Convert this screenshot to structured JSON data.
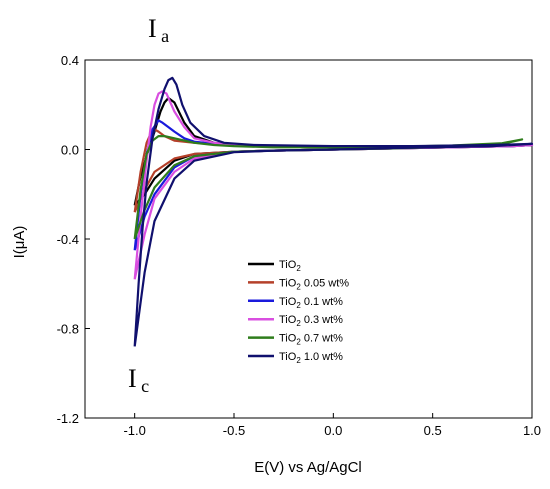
{
  "chart_data": {
    "type": "line",
    "xlabel": "E(V) vs Ag/AgCl",
    "ylabel": "I(μA)",
    "xlim": [
      -1.25,
      1.0
    ],
    "ylim": [
      -1.2,
      0.4
    ],
    "xticks": [
      -1.0,
      -0.5,
      0.0,
      0.5,
      1.0
    ],
    "xtick_labels": [
      "-1.0",
      "-0.5",
      "0.0",
      "0.5",
      "1.0"
    ],
    "yticks": [
      0.4,
      0.0,
      -0.4,
      -0.8,
      -1.2
    ],
    "ytick_labels": [
      "0.4",
      "0.0",
      "-0.4",
      "-0.8",
      "-1.2"
    ],
    "grid": false,
    "legend_position": "lower-center",
    "annotations": [
      {
        "main": "I",
        "sub": "a"
      },
      {
        "main": "I",
        "sub": "c"
      }
    ],
    "series": [
      {
        "name": "TiO2",
        "name_base": "TiO",
        "name_sub": "2",
        "name_suffix": "",
        "color": "#000000",
        "x": [
          -1.0,
          -0.97,
          -0.93,
          -0.9,
          -0.87,
          -0.85,
          -0.83,
          -0.8,
          -0.75,
          -0.7,
          -0.6,
          -0.5,
          -0.3,
          0.0,
          0.3,
          0.6,
          0.9,
          1.0,
          0.9,
          0.6,
          0.3,
          0.0,
          -0.3,
          -0.5,
          -0.7,
          -0.8,
          -0.9,
          -0.95,
          -1.0
        ],
        "y": [
          -0.25,
          -0.12,
          0.0,
          0.08,
          0.17,
          0.21,
          0.23,
          0.21,
          0.12,
          0.06,
          0.03,
          0.02,
          0.015,
          0.012,
          0.012,
          0.015,
          0.02,
          0.02,
          0.015,
          0.01,
          0.005,
          0.0,
          -0.005,
          -0.01,
          -0.02,
          -0.05,
          -0.13,
          -0.2,
          -0.25
        ]
      },
      {
        "name": "TiO2 0.05 wt%",
        "name_base": "TiO",
        "name_sub": "2",
        "name_suffix": " 0.05 wt%",
        "color": "#b5402a",
        "x": [
          -1.0,
          -0.97,
          -0.94,
          -0.92,
          -0.9,
          -0.88,
          -0.85,
          -0.8,
          -0.7,
          -0.6,
          -0.5,
          -0.3,
          0.0,
          0.3,
          0.6,
          0.9,
          1.0,
          0.9,
          0.6,
          0.3,
          0.0,
          -0.3,
          -0.5,
          -0.7,
          -0.8,
          -0.9,
          -0.95,
          -1.0
        ],
        "y": [
          -0.28,
          -0.1,
          0.03,
          0.07,
          0.09,
          0.08,
          0.06,
          0.04,
          0.03,
          0.025,
          0.02,
          0.015,
          0.012,
          0.012,
          0.015,
          0.02,
          0.02,
          0.015,
          0.01,
          0.005,
          0.0,
          -0.005,
          -0.01,
          -0.02,
          -0.04,
          -0.1,
          -0.18,
          -0.28
        ]
      },
      {
        "name": "TiO2 0.1 wt%",
        "name_base": "TiO",
        "name_sub": "2",
        "name_suffix": " 0.1 wt%",
        "color": "#1a1adc",
        "x": [
          -1.0,
          -0.97,
          -0.94,
          -0.91,
          -0.88,
          -0.86,
          -0.83,
          -0.8,
          -0.75,
          -0.7,
          -0.6,
          -0.5,
          -0.3,
          0.0,
          0.3,
          0.6,
          0.9,
          1.0,
          0.9,
          0.6,
          0.3,
          0.0,
          -0.3,
          -0.5,
          -0.7,
          -0.8,
          -0.9,
          -0.95,
          -1.0
        ],
        "y": [
          -0.45,
          -0.2,
          -0.02,
          0.09,
          0.13,
          0.12,
          0.1,
          0.08,
          0.05,
          0.035,
          0.025,
          0.02,
          0.015,
          0.012,
          0.012,
          0.015,
          0.02,
          0.02,
          0.015,
          0.01,
          0.005,
          0.0,
          -0.005,
          -0.01,
          -0.03,
          -0.08,
          -0.2,
          -0.3,
          -0.45
        ]
      },
      {
        "name": "TiO2 0.3 wt%",
        "name_base": "TiO",
        "name_sub": "2",
        "name_suffix": " 0.3 wt%",
        "color": "#d94fe0",
        "x": [
          -1.0,
          -0.97,
          -0.94,
          -0.92,
          -0.9,
          -0.88,
          -0.86,
          -0.84,
          -0.82,
          -0.8,
          -0.75,
          -0.7,
          -0.6,
          -0.5,
          -0.3,
          0.0,
          0.3,
          0.6,
          0.9,
          1.0,
          0.9,
          0.6,
          0.3,
          0.0,
          -0.3,
          -0.5,
          -0.7,
          -0.8,
          -0.9,
          -0.95,
          -1.0
        ],
        "y": [
          -0.58,
          -0.3,
          -0.05,
          0.1,
          0.2,
          0.25,
          0.26,
          0.25,
          0.21,
          0.17,
          0.1,
          0.05,
          0.03,
          0.02,
          0.015,
          0.012,
          0.012,
          0.015,
          0.02,
          0.02,
          0.015,
          0.01,
          0.005,
          0.0,
          -0.005,
          -0.01,
          -0.04,
          -0.1,
          -0.22,
          -0.38,
          -0.58
        ]
      },
      {
        "name": "TiO2 0.7 wt%",
        "name_base": "TiO",
        "name_sub": "2",
        "name_suffix": " 0.7  wt%",
        "color": "#2f7d1c",
        "x": [
          -1.0,
          -0.97,
          -0.94,
          -0.91,
          -0.88,
          -0.85,
          -0.8,
          -0.7,
          -0.6,
          -0.5,
          -0.3,
          0.0,
          0.3,
          0.6,
          0.85,
          0.95,
          0.85,
          0.6,
          0.3,
          0.0,
          -0.3,
          -0.5,
          -0.7,
          -0.8,
          -0.9,
          -0.95,
          -1.0
        ],
        "y": [
          -0.4,
          -0.18,
          -0.02,
          0.04,
          0.06,
          0.06,
          0.05,
          0.03,
          0.02,
          0.015,
          0.01,
          0.01,
          0.012,
          0.018,
          0.028,
          0.045,
          0.025,
          0.012,
          0.005,
          0.0,
          -0.005,
          -0.01,
          -0.03,
          -0.07,
          -0.17,
          -0.27,
          -0.4
        ]
      },
      {
        "name": "TiO2 1.0 wt%",
        "name_base": "TiO",
        "name_sub": "2",
        "name_suffix": " 1.0 wt%",
        "color": "#10106e",
        "x": [
          -1.0,
          -0.98,
          -0.96,
          -0.94,
          -0.91,
          -0.88,
          -0.85,
          -0.83,
          -0.81,
          -0.79,
          -0.76,
          -0.72,
          -0.65,
          -0.55,
          -0.4,
          0.0,
          0.4,
          0.8,
          1.0,
          0.8,
          0.4,
          0.0,
          -0.3,
          -0.5,
          -0.7,
          -0.8,
          -0.9,
          -0.95,
          -1.0
        ],
        "y": [
          -0.88,
          -0.6,
          -0.35,
          -0.15,
          0.05,
          0.18,
          0.27,
          0.31,
          0.32,
          0.29,
          0.2,
          0.12,
          0.06,
          0.03,
          0.02,
          0.015,
          0.015,
          0.02,
          0.025,
          0.015,
          0.008,
          0.0,
          -0.005,
          -0.012,
          -0.05,
          -0.13,
          -0.32,
          -0.55,
          -0.88
        ]
      }
    ]
  }
}
